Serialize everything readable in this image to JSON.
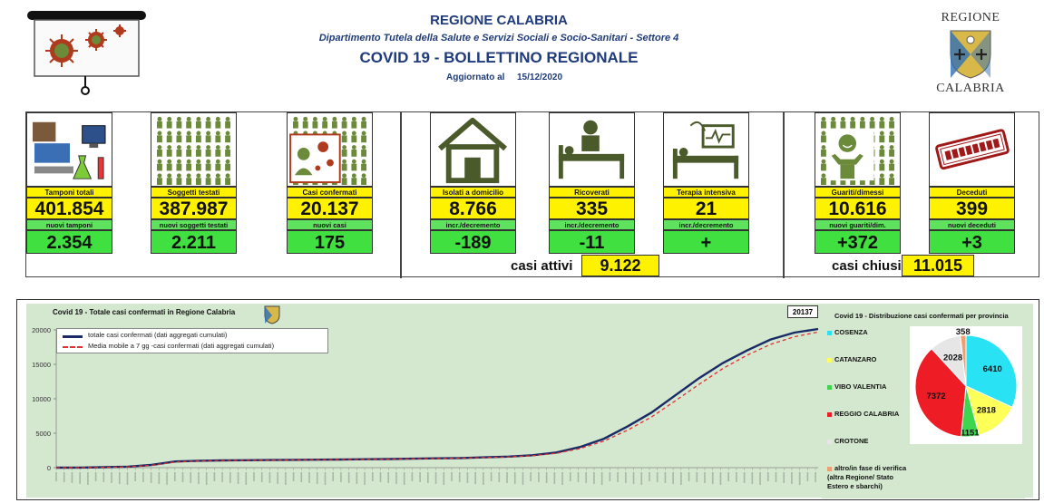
{
  "header": {
    "region": "REGIONE CALABRIA",
    "department": "Dipartimento Tutela della Salute e Servizi Sociali e Socio-Sanitari - Settore 4",
    "title": "COVID 19 - BOLLETTINO REGIONALE",
    "updated_label": "Aggiornato al",
    "updated_date": "15/12/2020",
    "logo_top": "REGIONE",
    "logo_bottom": "CALABRIA"
  },
  "stats": [
    {
      "label": "Tamponi totali",
      "value": "401.854",
      "sub_label": "nuovi tamponi",
      "sub_value": "2.354",
      "icon": "lab-test-icon"
    },
    {
      "label": "Soggetti testati",
      "value": "387.987",
      "sub_label": "nuovi soggetti testati",
      "sub_value": "2.211",
      "icon": "people-grid-icon"
    },
    {
      "label": "Casi confermati",
      "value": "20.137",
      "sub_label": "nuovi casi",
      "sub_value": "175",
      "icon": "sick-person-icon"
    },
    {
      "label": "Isolati a domicilio",
      "value": "8.766",
      "sub_label": "incr./decremento",
      "sub_value": "-189",
      "icon": "house-icon"
    },
    {
      "label": "Ricoverati",
      "value": "335",
      "sub_label": "incr./decremento",
      "sub_value": "-11",
      "icon": "hospital-bed-icon"
    },
    {
      "label": "Terapia intensiva",
      "value": "21",
      "sub_label": "incr./decremento",
      "sub_value": "+",
      "icon": "icu-bed-icon"
    },
    {
      "label": "Guariti/dimessi",
      "value": "10.616",
      "sub_label": "nuovi guariti/dim.",
      "sub_value": "+372",
      "icon": "recovered-person-icon"
    },
    {
      "label": "Deceduti",
      "value": "399",
      "sub_label": "nuovi deceduti",
      "sub_value": "+3",
      "icon": "deceased-stamp-icon"
    }
  ],
  "totals": {
    "active_label": "casi attivi",
    "active_value": "9.122",
    "closed_label": "casi chiusi",
    "closed_value": "11.015"
  },
  "colors": {
    "yellow": "#fff200",
    "green": "#3fe03f",
    "navy": "#1f3b7a",
    "line_total": "#1a2a66",
    "line_avg": "#e03030"
  },
  "chart_data": [
    {
      "type": "line",
      "title": "Covid 19 - Totale casi confermati in Regione Calabria",
      "last_value_label": "20137",
      "ylim": [
        0,
        20000
      ],
      "y_ticks": [
        "0",
        "5000",
        "10000",
        "15000",
        "20000"
      ],
      "x_points": 290,
      "series": [
        {
          "name": "totale casi confermati (dati aggregati cumulati)",
          "style": "solid",
          "values": [
            0,
            12,
            60,
            150,
            400,
            900,
            1000,
            1050,
            1080,
            1100,
            1130,
            1160,
            1190,
            1220,
            1250,
            1300,
            1350,
            1400,
            1500,
            1600,
            1800,
            2200,
            3000,
            4200,
            6000,
            8000,
            10500,
            13000,
            15200,
            17000,
            18600,
            19600,
            20137
          ]
        },
        {
          "name": "Media mobile a 7 gg -casi confermati (dati aggregati cumulati)",
          "style": "dashed",
          "values": [
            0,
            8,
            45,
            120,
            340,
            820,
            980,
            1030,
            1065,
            1090,
            1120,
            1150,
            1180,
            1210,
            1240,
            1285,
            1335,
            1385,
            1475,
            1565,
            1740,
            2080,
            2780,
            3850,
            5450,
            7350,
            9700,
            12100,
            14400,
            16300,
            17900,
            19000,
            19700
          ]
        }
      ]
    },
    {
      "type": "pie",
      "title": "Covid 19 - Distribuzione casi confermati per provincia",
      "slices": [
        {
          "name": "COSENZA",
          "value": 6410,
          "color": "#29e3f4"
        },
        {
          "name": "CATANZARO",
          "value": 2818,
          "color": "#ffff5a"
        },
        {
          "name": "VIBO VALENTIA",
          "value": 1151,
          "color": "#3fd64f"
        },
        {
          "name": "REGGIO CALABRIA",
          "value": 7372,
          "color": "#ee1c24"
        },
        {
          "name": "CROTONE",
          "value": 2028,
          "color": "#e6e6e6"
        },
        {
          "name": "altro/in fase di verifica (altra Regione/ Stato Estero e sbarchi)",
          "value": 358,
          "color": "#f0a070"
        }
      ]
    }
  ]
}
